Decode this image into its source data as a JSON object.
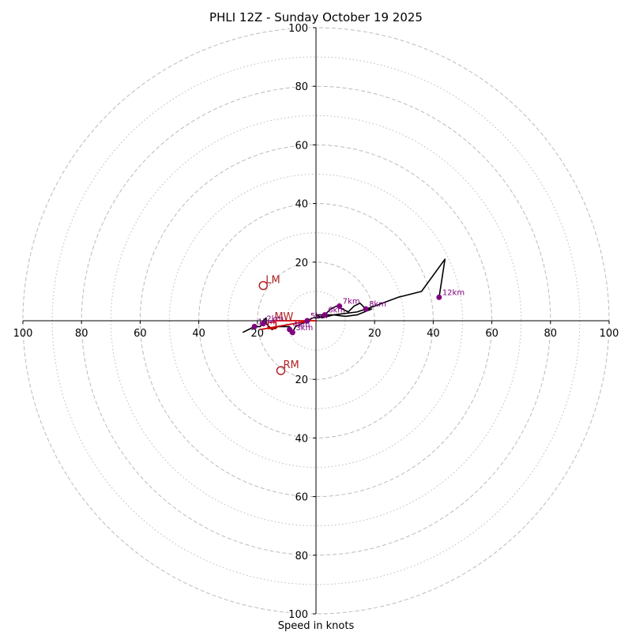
{
  "chart_data": {
    "type": "hodograph",
    "title": "PHLI 12Z - Sunday October 19 2025",
    "xlabel": "Speed in knots",
    "xlim": [
      -100,
      100
    ],
    "ylim": [
      -100,
      100
    ],
    "ring_major": [
      20,
      40,
      60,
      80,
      100
    ],
    "ring_minor": [
      10,
      30,
      50,
      70,
      90
    ],
    "x_ticks": [
      "100",
      "80",
      "60",
      "40",
      "20",
      "20",
      "40",
      "60",
      "80",
      "100"
    ],
    "x_tick_values": [
      -100,
      -80,
      -60,
      -40,
      -20,
      20,
      40,
      60,
      80,
      100
    ],
    "y_ticks": [
      "100",
      "80",
      "60",
      "40",
      "20",
      "20",
      "40",
      "60",
      "80",
      "100"
    ],
    "y_tick_values": [
      100,
      80,
      60,
      40,
      20,
      -20,
      -40,
      -60,
      -80,
      -100
    ],
    "trace": [
      [
        -25,
        -4
      ],
      [
        -23,
        -3
      ],
      [
        -21,
        -2
      ],
      [
        -19,
        -2
      ],
      [
        -18,
        0
      ],
      [
        -17,
        1
      ],
      [
        -17,
        -1
      ],
      [
        -15,
        -3
      ],
      [
        -13,
        -2
      ],
      [
        -11,
        -2
      ],
      [
        -9,
        -2
      ],
      [
        -8,
        -4
      ],
      [
        -7,
        -2
      ],
      [
        -5,
        -1
      ],
      [
        -3,
        0
      ],
      [
        -1,
        1
      ],
      [
        1,
        1
      ],
      [
        3,
        2
      ],
      [
        5,
        4
      ],
      [
        7,
        5
      ],
      [
        9,
        4
      ],
      [
        11,
        3
      ],
      [
        13,
        5
      ],
      [
        15,
        6
      ],
      [
        17,
        4
      ],
      [
        19,
        4
      ],
      [
        14,
        2
      ],
      [
        10,
        1.5
      ],
      [
        6,
        2
      ],
      [
        2,
        1
      ],
      [
        0,
        2
      ],
      [
        6,
        2
      ],
      [
        14,
        3
      ],
      [
        20,
        5
      ],
      [
        28,
        8
      ],
      [
        36,
        10
      ],
      [
        44,
        21
      ],
      [
        42,
        8
      ]
    ],
    "height_markers": [
      {
        "label": "1km",
        "u": -21,
        "v": -2
      },
      {
        "label": "2km",
        "u": -18,
        "v": -1
      },
      {
        "label": "3km",
        "u": -8,
        "v": -4
      },
      {
        "label": "4km",
        "u": -9,
        "v": -3
      },
      {
        "label": "5km",
        "u": -3,
        "v": 0
      },
      {
        "label": "6km",
        "u": 3,
        "v": 2
      },
      {
        "label": "7km",
        "u": 8,
        "v": 5
      },
      {
        "label": "8km",
        "u": 17,
        "v": 4
      },
      {
        "label": "12km",
        "u": 42,
        "v": 8
      }
    ],
    "mean_wind_vector": {
      "label": "MW",
      "u": -15,
      "v": 0
    },
    "shear_vector": {
      "u0": -19,
      "v0": -3,
      "u1": -2,
      "v1": 0
    },
    "motion_markers": [
      {
        "label": "LM",
        "u": -18,
        "v": 12
      },
      {
        "label": "RM",
        "u": -12,
        "v": -17
      }
    ],
    "colors": {
      "trace": "#000000",
      "height": "#800080",
      "motion": "#b22222",
      "vector": "#cc0000",
      "grid": "#bbbbbb"
    }
  }
}
